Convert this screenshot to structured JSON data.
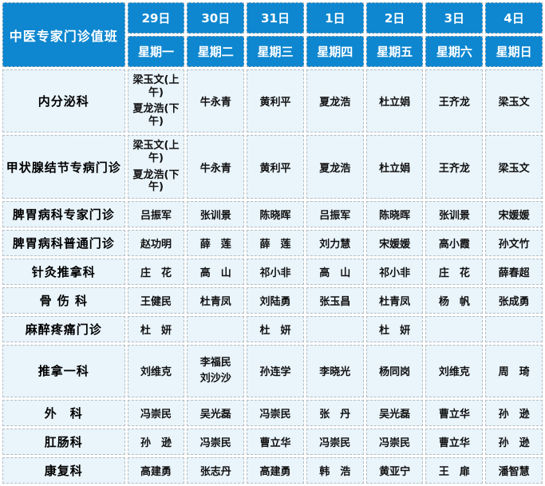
{
  "title": "中医专家门诊值班",
  "columns": [
    {
      "date": "29日",
      "weekday": "星期一"
    },
    {
      "date": "30日",
      "weekday": "星期二"
    },
    {
      "date": "31日",
      "weekday": "星期三"
    },
    {
      "date": "1日",
      "weekday": "星期四"
    },
    {
      "date": "2日",
      "weekday": "星期五"
    },
    {
      "date": "3日",
      "weekday": "星期六"
    },
    {
      "date": "4日",
      "weekday": "星期日"
    }
  ],
  "rows": [
    {
      "department": "内分泌科",
      "cells": [
        [
          "梁玉文(上午)",
          "夏龙浩(下午)"
        ],
        "牛永青",
        "黄利平",
        "夏龙浩",
        "杜立娟",
        "王齐龙",
        "梁玉文"
      ]
    },
    {
      "department": "甲状腺结节专病门诊",
      "cells": [
        [
          "梁玉文(上午)",
          "夏龙浩(下午)"
        ],
        "牛永青",
        "黄利平",
        "夏龙浩",
        "杜立娟",
        "王齐龙",
        "梁玉文"
      ]
    },
    {
      "department": "脾胃病科专家门诊",
      "cells": [
        "吕振军",
        "张训景",
        "陈晓晖",
        "吕振军",
        "陈晓晖",
        "张训景",
        "宋媛媛"
      ]
    },
    {
      "department": "脾胃病科普通门诊",
      "cells": [
        "赵功明",
        "薛　莲",
        "薛　莲",
        "刘力慧",
        "宋媛媛",
        "高小霞",
        "孙文竹"
      ]
    },
    {
      "department": "针灸推拿科",
      "cells": [
        "庄　花",
        "高　山",
        "祁小非",
        "高　山",
        "祁小非",
        "庄　花",
        "薛春超"
      ]
    },
    {
      "department": "骨 伤 科",
      "cells": [
        "王健民",
        "杜青凤",
        "刘陆勇",
        "张玉昌",
        "杜青凤",
        "杨　帆",
        "张成勇"
      ]
    },
    {
      "department": "麻醉疼痛门诊",
      "cells": [
        "杜　妍",
        "",
        "杜　妍",
        "",
        "杜　妍",
        "",
        ""
      ]
    },
    {
      "department": "推拿一科",
      "cells": [
        "刘维克",
        [
          "李福民",
          "刘沙沙"
        ],
        "孙连学",
        "李晓光",
        "杨同岗",
        "刘维克",
        "周　琦"
      ]
    },
    {
      "department": "外　科",
      "cells": [
        "冯崇民",
        "吴光磊",
        "冯崇民",
        "张　丹",
        "吴光磊",
        "曹立华",
        "孙　逊"
      ]
    },
    {
      "department": "肛肠科",
      "cells": [
        "孙　逊",
        "冯崇民",
        "曹立华",
        "冯崇民",
        "冯崇民",
        "曹立华",
        "孙　逊"
      ]
    },
    {
      "department": "康复科",
      "cells": [
        "高建勇",
        "张志丹",
        "高建勇",
        "韩　浩",
        "黄亚宁",
        "王　扉",
        "潘智慧"
      ]
    }
  ],
  "colors": {
    "header_bg": "#0e87d0",
    "cell_bg": "#e9f4fb",
    "border": "#b4bcc3"
  }
}
